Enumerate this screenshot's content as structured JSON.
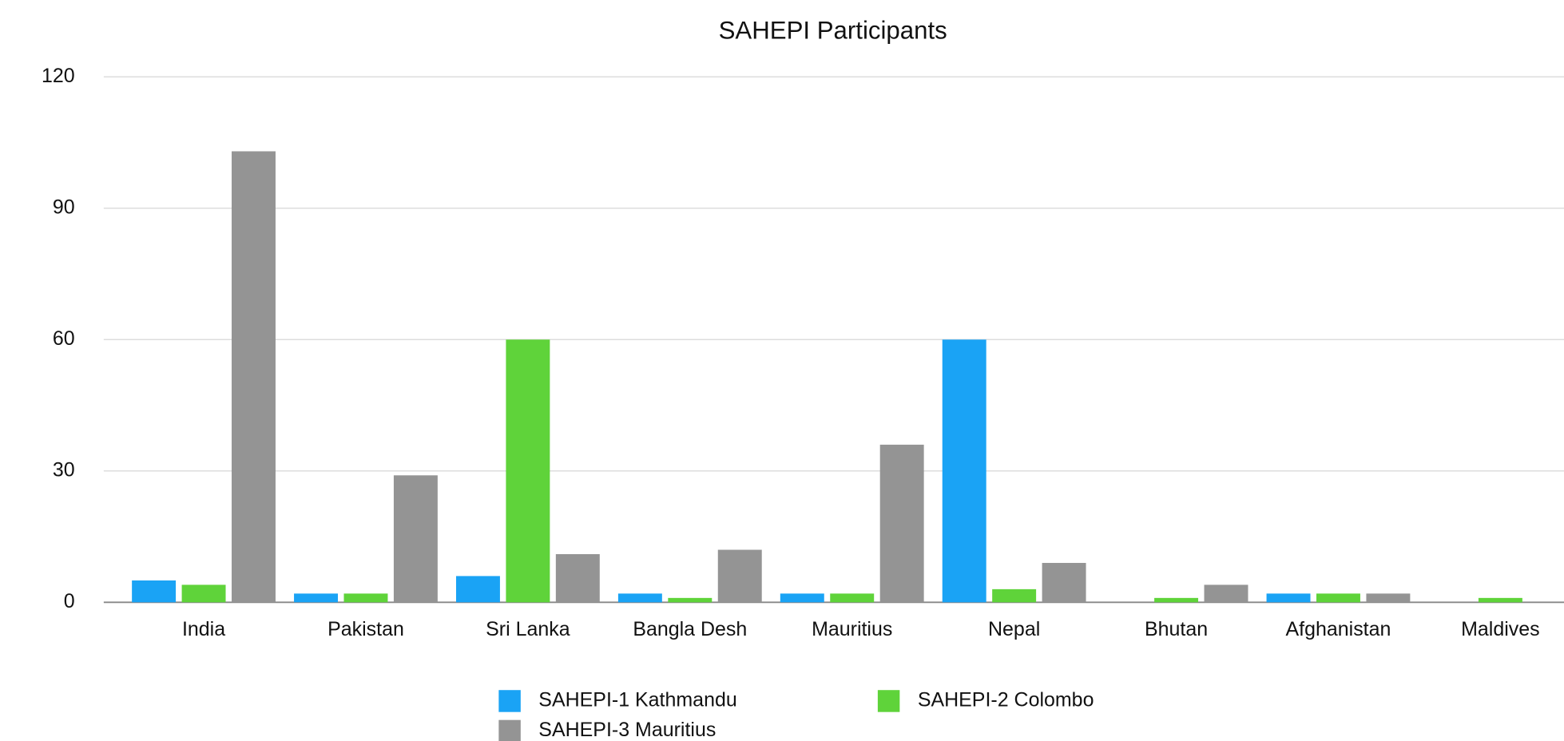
{
  "chart_data": {
    "type": "bar",
    "title": "SAHEPI Participants",
    "categories": [
      "India",
      "Pakistan",
      "Sri Lanka",
      "Bangla Desh",
      "Mauritius",
      "Nepal",
      "Bhutan",
      "Afghanistan",
      "Maldives"
    ],
    "series": [
      {
        "name": "SAHEPI-1 Kathmandu",
        "color": "#1aa3f5",
        "values": [
          5,
          2,
          6,
          2,
          2,
          60,
          0,
          2,
          0
        ]
      },
      {
        "name": "SAHEPI-2 Colombo",
        "color": "#5fd33a",
        "values": [
          4,
          2,
          60,
          1,
          2,
          3,
          1,
          2,
          1
        ]
      },
      {
        "name": "SAHEPI-3 Mauritius",
        "color": "#949494",
        "values": [
          103,
          29,
          11,
          12,
          36,
          9,
          4,
          2,
          0
        ]
      }
    ],
    "ylim": [
      0,
      120
    ],
    "yticks": [
      0,
      30,
      60,
      90,
      120
    ],
    "grid": true,
    "legend": "bottom"
  }
}
